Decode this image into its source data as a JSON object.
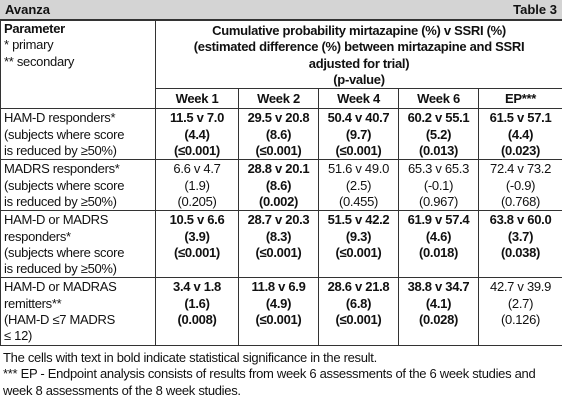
{
  "header": {
    "left": "Avanza",
    "right": "Table 3"
  },
  "table": {
    "param_header": [
      "Parameter",
      "* primary",
      "** secondary"
    ],
    "group_header": [
      "Cumulative probability mirtazapine (%) v SSRI (%)",
      "(estimated difference (%) between mirtazapine and SSRI",
      "adjusted for trial)",
      "(p-value)"
    ],
    "columns": [
      "Week 1",
      "Week 2",
      "Week 4",
      "Week 6",
      "EP***"
    ],
    "rows": [
      {
        "label": [
          "HAM-D responders*",
          "(subjects where score",
          "is reduced by ≥50%)"
        ],
        "cells": [
          {
            "lines": [
              "11.5 v 7.0",
              "(4.4)",
              "(≤0.001)"
            ],
            "bold": true
          },
          {
            "lines": [
              "29.5 v 20.8",
              "(8.6)",
              "(≤0.001)"
            ],
            "bold": true
          },
          {
            "lines": [
              "50.4 v 40.7",
              "(9.7)",
              "(≤0.001)"
            ],
            "bold": true
          },
          {
            "lines": [
              "60.2 v 55.1",
              "(5.2)",
              "(0.013)"
            ],
            "bold": true
          },
          {
            "lines": [
              "61.5 v 57.1",
              "(4.4)",
              "(0.023)"
            ],
            "bold": true
          }
        ]
      },
      {
        "label": [
          "MADRS responders*",
          "(subjects where score",
          "is reduced by ≥50%)"
        ],
        "cells": [
          {
            "lines": [
              "6.6 v 4.7",
              "(1.9)",
              "(0.205)"
            ],
            "bold": false
          },
          {
            "lines": [
              "28.8 v 20.1",
              "(8.6)",
              "(0.002)"
            ],
            "bold": true
          },
          {
            "lines": [
              "51.6 v 49.0",
              "(2.5)",
              "(0.455)"
            ],
            "bold": false
          },
          {
            "lines": [
              "65.3 v 65.3",
              "(-0.1)",
              "(0.967)"
            ],
            "bold": false
          },
          {
            "lines": [
              "72.4 v 73.2",
              "(-0.9)",
              "(0.768)"
            ],
            "bold": false
          }
        ]
      },
      {
        "label": [
          "HAM-D or MADRS",
          "responders*",
          "(subjects where score",
          "is reduced by ≥50%)"
        ],
        "cells": [
          {
            "lines": [
              "10.5 v 6.6",
              "(3.9)",
              "(≤0.001)"
            ],
            "bold": true
          },
          {
            "lines": [
              "28.7 v 20.3",
              "(8.3)",
              "(≤0.001)"
            ],
            "bold": true
          },
          {
            "lines": [
              "51.5 v 42.2",
              "(9.3)",
              "(≤0.001)"
            ],
            "bold": true
          },
          {
            "lines": [
              "61.9 v 57.4",
              "(4.6)",
              "(0.018)"
            ],
            "bold": true
          },
          {
            "lines": [
              "63.8 v 60.0",
              "(3.7)",
              "(0.038)"
            ],
            "bold": true
          }
        ]
      },
      {
        "label": [
          "HAM-D or MADRAS",
          "remitters**",
          "(HAM-D ≤7 MADRS",
          "≤ 12)"
        ],
        "cells": [
          {
            "lines": [
              "3.4 v 1.8",
              "(1.6)",
              "(0.008)"
            ],
            "bold": true
          },
          {
            "lines": [
              "11.8 v 6.9",
              "(4.9)",
              "(≤0.001)"
            ],
            "bold": true
          },
          {
            "lines": [
              "28.6 v 21.8",
              "(6.8)",
              "(≤0.001)"
            ],
            "bold": true
          },
          {
            "lines": [
              "38.8 v 34.7",
              "(4.1)",
              "(0.028)"
            ],
            "bold": true
          },
          {
            "lines": [
              "42.7 v 39.9",
              "(2.7)",
              "(0.126)"
            ],
            "bold": false
          }
        ]
      }
    ]
  },
  "footnotes": [
    "The cells with text in bold indicate statistical significance in the result.",
    "*** EP - Endpoint analysis consists of results from week 6 assessments of the 6 week studies and week 8 assessments of the 8 week studies."
  ]
}
